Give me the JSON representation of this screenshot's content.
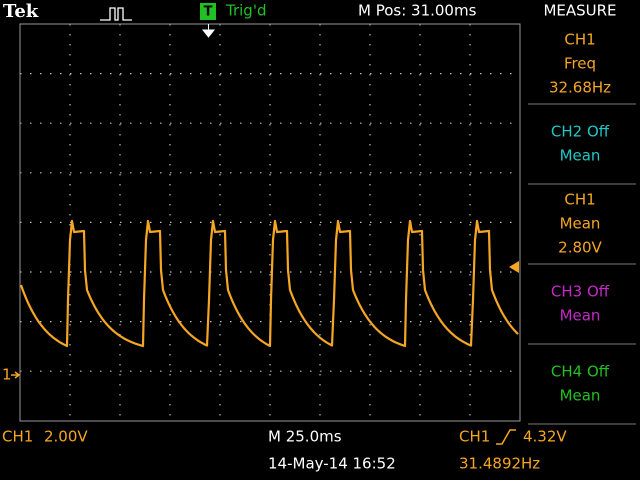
{
  "header": {
    "brand": "Tek",
    "trigger_badge": "T",
    "trigger_status": "Trig'd",
    "position": "M Pos: 31.00ms"
  },
  "measure": {
    "title": "MEASURE",
    "items": [
      {
        "lines": [
          "CH1",
          "Freq",
          "32.68Hz"
        ]
      },
      {
        "lines": [
          "CH2 Off",
          "Mean"
        ]
      },
      {
        "lines": [
          "CH1",
          "Mean",
          "2.80V"
        ]
      },
      {
        "lines": [
          "CH3 Off",
          "Mean"
        ]
      },
      {
        "lines": [
          "CH4 Off",
          "Mean"
        ]
      }
    ]
  },
  "footer": {
    "ch1_label": "CH1",
    "ch1_scale": "2.00V",
    "timebase": "M 25.0ms",
    "trigger_source": "CH1",
    "trigger_level": "4.32V",
    "date": "14-May-14 16:52",
    "frequency": "31.4892Hz"
  },
  "markers": {
    "ch1": "1"
  }
}
